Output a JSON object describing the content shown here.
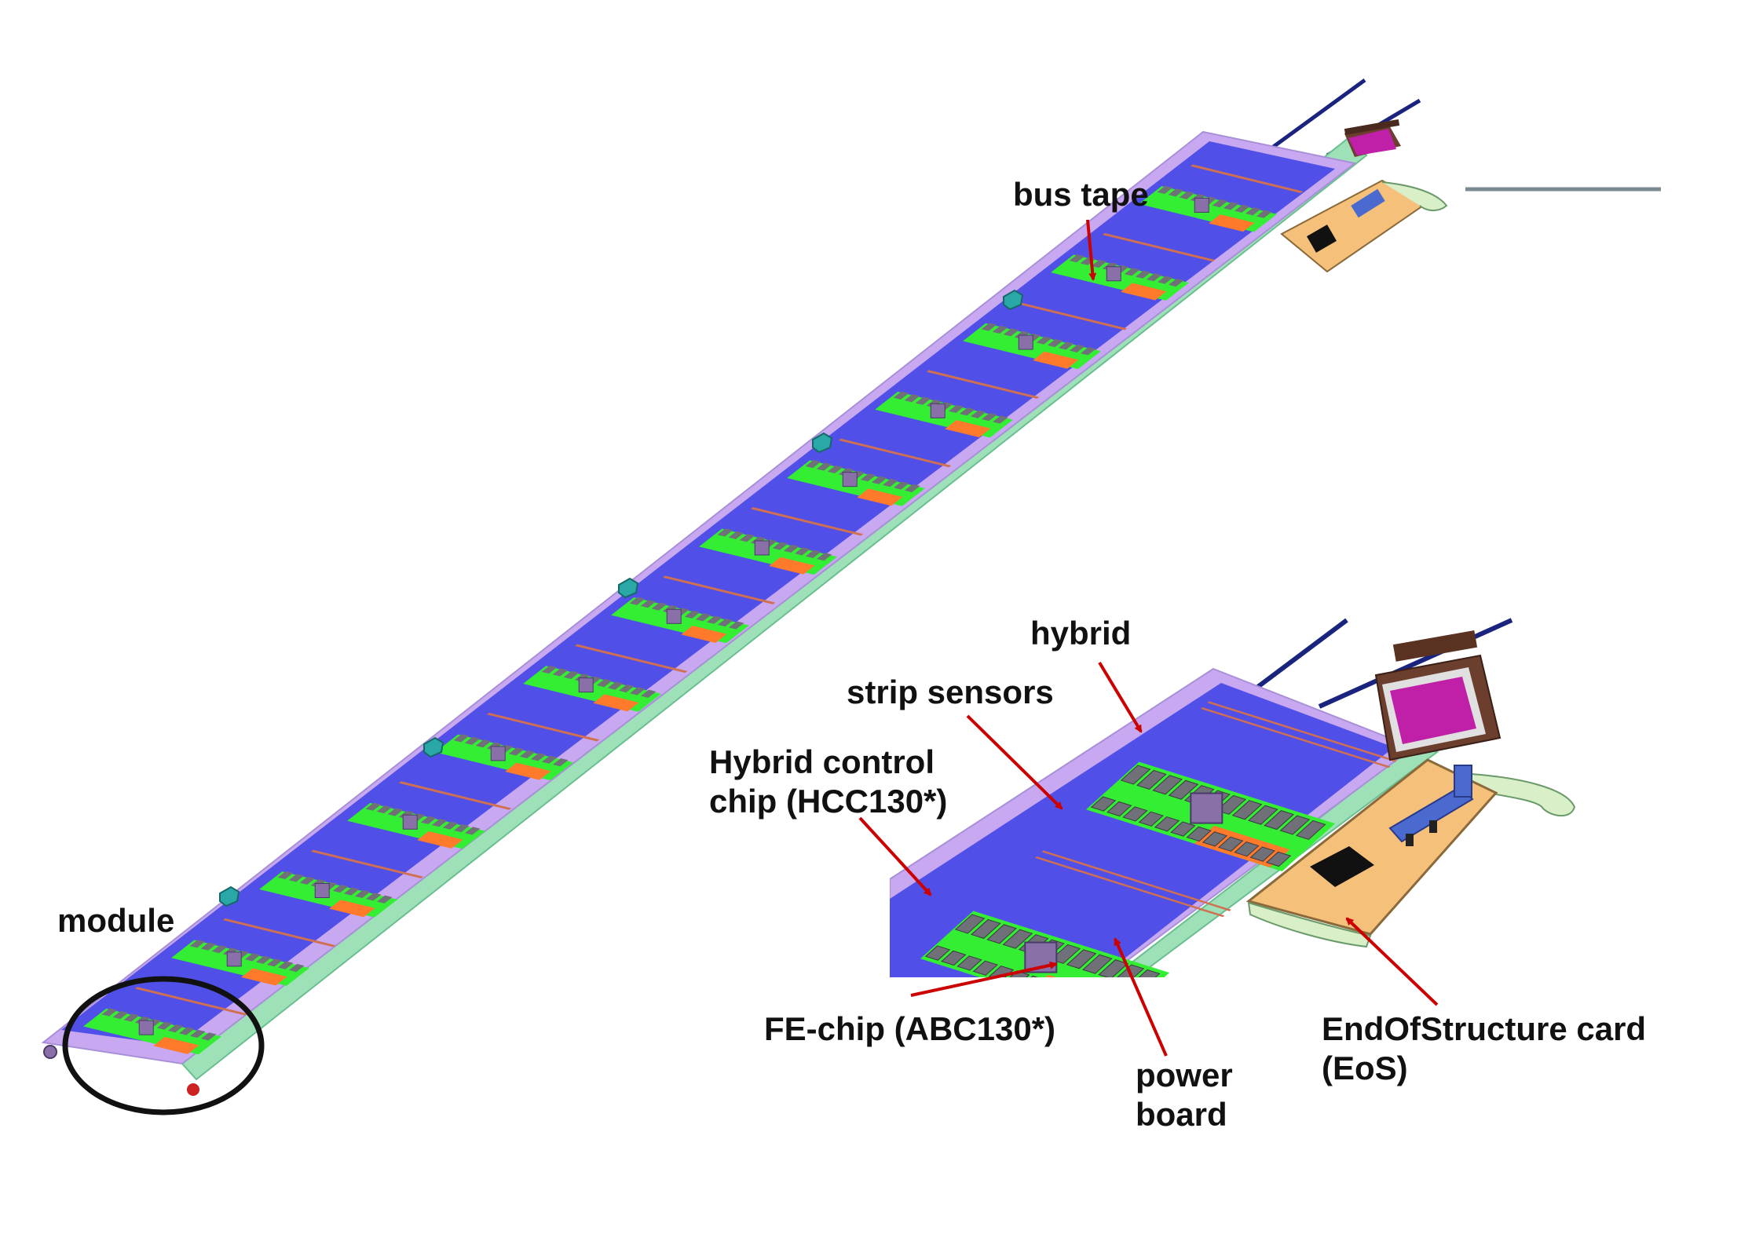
{
  "labels": {
    "bus_tape": "bus tape",
    "module": "module",
    "hybrid": "hybrid",
    "strip_sensors": "strip sensors",
    "hcc_line1": "Hybrid control",
    "hcc_line2": "chip (HCC130*)",
    "fe_chip": "FE-chip (ABC130*)",
    "power_line1": "power",
    "power_line2": "board",
    "eos_line1": "EndOfStructure card",
    "eos_line2": "(EoS)"
  },
  "colors": {
    "sensor": "#5050e8",
    "frame": "#c8a8f0",
    "hybrid": "#33ee33",
    "power_board": "#ff7a2a",
    "asic": "#707078",
    "hcc": "#8a70a8",
    "eos_card": "#f5c07a",
    "eos_chip": "#111111",
    "edge": "#9ee0b8",
    "arrow": "#cc0000",
    "cable": "#1a237e",
    "connector_body": "#6b3e2e",
    "connector_face": "#c020a8",
    "stand": "#2aa8a8",
    "grey_line": "#7a8a90"
  },
  "stave": {
    "module_count": 13
  }
}
